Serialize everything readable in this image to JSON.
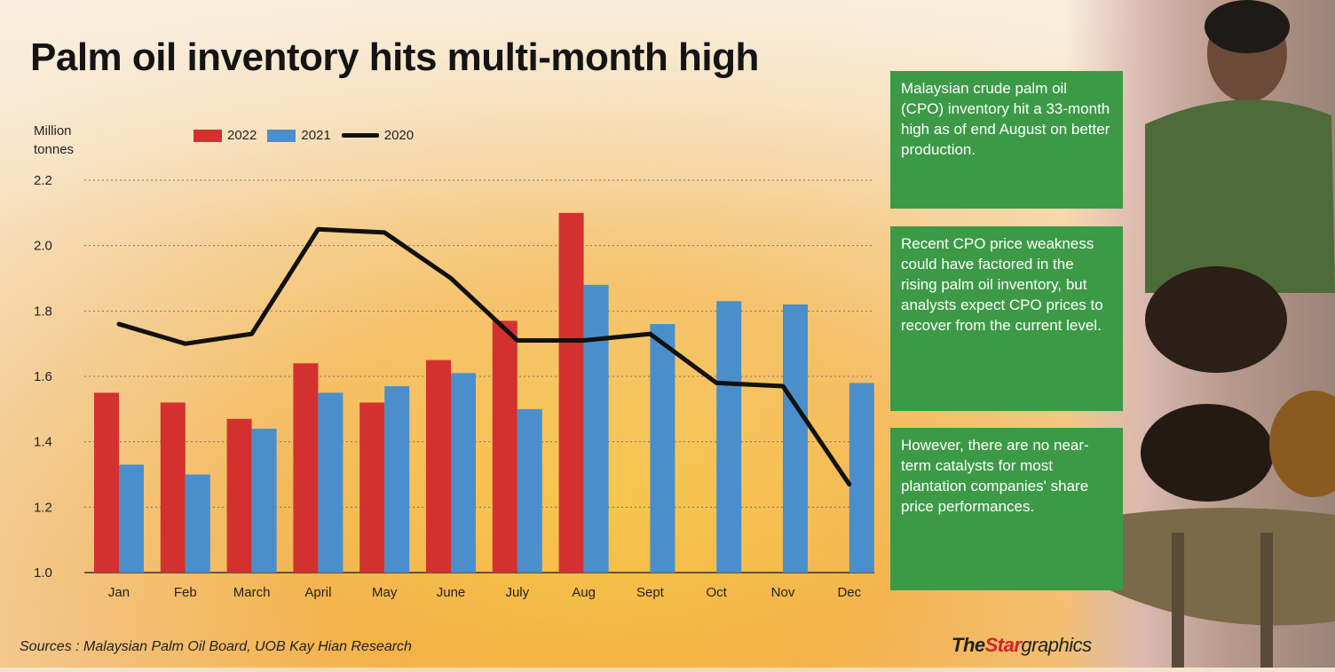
{
  "title": "Palm oil inventory hits multi-month high",
  "unit_label_line1": "Million",
  "unit_label_line2": "tonnes",
  "legend": [
    {
      "label": "2022",
      "color": "#d3312f"
    },
    {
      "label": "2021",
      "color": "#4a8fcb"
    },
    {
      "label": "2020",
      "color": "#111111"
    }
  ],
  "panels": [
    "Malaysian crude palm oil (CPO) inventory hit a 33-month high as of end August on better production.",
    "Recent CPO price weakness could have factored in the rising palm oil inventory, but analysts expect CPO prices to recover from the current level.",
    "However, there are no near-term catalysts for most plantation companies' share price performances."
  ],
  "source": "Sources : Malaysian Palm Oil Board, UOB Kay Hian Research",
  "brand": {
    "the": "The",
    "star": "Star",
    "graphics": "graphics"
  },
  "chart_data": {
    "type": "bar",
    "title": "Palm oil inventory hits multi-month high",
    "ylabel": "Million tonnes",
    "xlabel": "",
    "ylim": [
      1.0,
      2.2
    ],
    "yticks": [
      "1.0",
      "1.2",
      "1.4",
      "1.6",
      "1.8",
      "2.0",
      "2.2"
    ],
    "grid": true,
    "legend_position": "top-left",
    "categories": [
      "Jan",
      "Feb",
      "March",
      "April",
      "May",
      "June",
      "July",
      "Aug",
      "Sept",
      "Oct",
      "Nov",
      "Dec"
    ],
    "series": [
      {
        "name": "2022",
        "type": "bar",
        "values": [
          1.55,
          1.52,
          1.47,
          1.64,
          1.52,
          1.65,
          1.77,
          2.1,
          null,
          null,
          null,
          null
        ]
      },
      {
        "name": "2021",
        "type": "bar",
        "values": [
          1.33,
          1.3,
          1.44,
          1.55,
          1.57,
          1.61,
          1.5,
          1.88,
          1.76,
          1.83,
          1.82,
          1.58
        ]
      },
      {
        "name": "2020",
        "type": "line",
        "values": [
          1.76,
          1.7,
          1.73,
          2.05,
          2.04,
          1.9,
          1.71,
          1.71,
          1.73,
          1.58,
          1.57,
          1.27
        ]
      }
    ]
  }
}
